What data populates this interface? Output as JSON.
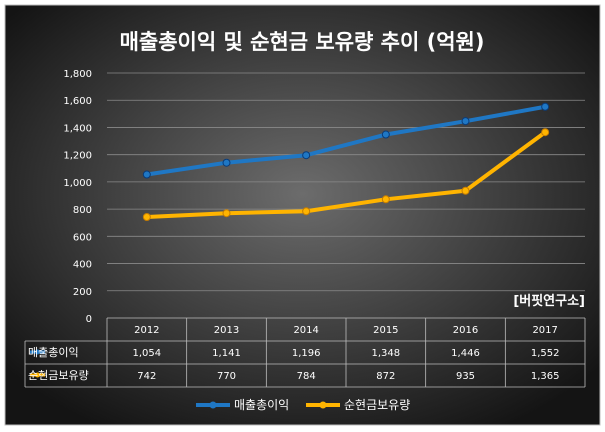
{
  "chart_data": {
    "type": "line",
    "title": "매출총이익 및 순현금 보유량 추이 (억원)",
    "annotation": "[버핏연구소]",
    "categories": [
      "2012",
      "2013",
      "2014",
      "2015",
      "2016",
      "2017"
    ],
    "series": [
      {
        "name": "매출총이익",
        "values": [
          1054,
          1141,
          1196,
          1348,
          1446,
          1552
        ],
        "color": "#1f77c4"
      },
      {
        "name": "순현금보유량",
        "values": [
          742,
          770,
          784,
          872,
          935,
          1365
        ],
        "color": "#ffb400"
      }
    ],
    "y_ticks": [
      "1,800",
      "1,600",
      "1,400",
      "1,200",
      "1,000",
      "800",
      "600",
      "400",
      "200",
      "0"
    ],
    "ylim": [
      0,
      1800
    ],
    "grid": true,
    "legend": "bottom",
    "table": {
      "rows": [
        {
          "label": "매출총이익",
          "cells": [
            "1,054",
            "1,141",
            "1,196",
            "1,348",
            "1,446",
            "1,552"
          ]
        },
        {
          "label": "순현금보유량",
          "cells": [
            "742",
            "770",
            "784",
            "872",
            "935",
            "1,365"
          ]
        }
      ]
    },
    "colors": {
      "background_outer": "#0f0f0f",
      "background_inner": "#6a6a6a",
      "text": "#ffffff",
      "grid": "#8a8a8a"
    }
  }
}
